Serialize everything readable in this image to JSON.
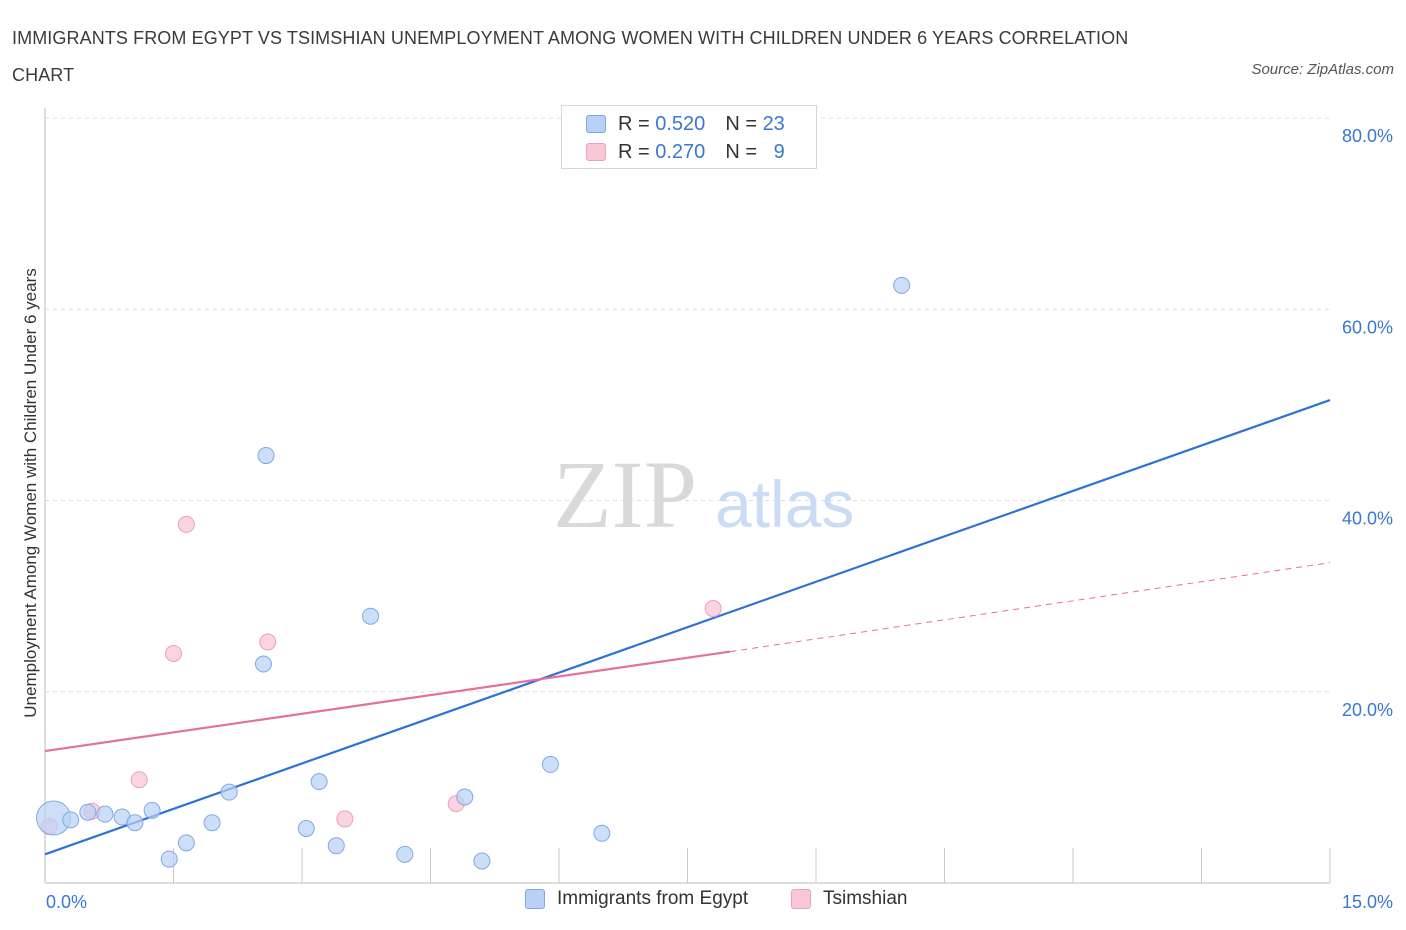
{
  "title": "IMMIGRANTS FROM EGYPT VS TSIMSHIAN UNEMPLOYMENT AMONG WOMEN WITH CHILDREN UNDER 6 YEARS CORRELATION CHART",
  "source": "Source: ZipAtlas.com",
  "watermark": {
    "zip": "ZIP",
    "atlas": "atlas"
  },
  "stats": [
    {
      "r_label": "R =",
      "r": "0.520",
      "n_label": "N =",
      "n": "23"
    },
    {
      "r_label": "R =",
      "r": "0.270",
      "n_label": "N =",
      "n": "9"
    }
  ],
  "colors": {
    "egypt_fill": "#b8d1f5",
    "egypt_stroke": "#7fa9e3",
    "egypt_line": "#2f72d6",
    "tsim_fill": "#f8c6d5",
    "tsim_stroke": "#eea0b8",
    "tsim_line": "#e5709a",
    "grid": "#dcdcdc",
    "axis_text": "#3a78d0"
  },
  "chart_data": {
    "type": "scatter",
    "title": "IMMIGRANTS FROM EGYPT VS TSIMSHIAN UNEMPLOYMENT AMONG WOMEN WITH CHILDREN UNDER 6 YEARS CORRELATION CHART",
    "xlabel": "",
    "ylabel": "Unemployment Among Women with Children Under 6 years",
    "xlim": [
      0,
      15
    ],
    "ylim": [
      0,
      80
    ],
    "x_tick_labels": [
      {
        "value": 0,
        "label": "0.0%"
      },
      {
        "value": 15,
        "label": "15.0%"
      }
    ],
    "y_tick_labels": [
      {
        "value": 20,
        "label": "20.0%"
      },
      {
        "value": 40,
        "label": "40.0%"
      },
      {
        "value": 60,
        "label": "60.0%"
      },
      {
        "value": 80,
        "label": "80.0%"
      }
    ],
    "grid": true,
    "legend_position": "top-center",
    "series": [
      {
        "name": "Immigrants from Egypt",
        "points": [
          {
            "x": 0.1,
            "y": 6.8,
            "big": true
          },
          {
            "x": 0.3,
            "y": 6.6
          },
          {
            "x": 0.5,
            "y": 7.4
          },
          {
            "x": 0.7,
            "y": 7.2
          },
          {
            "x": 0.9,
            "y": 6.9
          },
          {
            "x": 1.05,
            "y": 6.3
          },
          {
            "x": 1.25,
            "y": 7.6
          },
          {
            "x": 1.45,
            "y": 2.5
          },
          {
            "x": 1.65,
            "y": 4.2
          },
          {
            "x": 1.95,
            "y": 6.3
          },
          {
            "x": 2.15,
            "y": 9.5
          },
          {
            "x": 2.55,
            "y": 22.9
          },
          {
            "x": 2.58,
            "y": 44.7
          },
          {
            "x": 3.05,
            "y": 5.7
          },
          {
            "x": 3.2,
            "y": 10.6
          },
          {
            "x": 3.4,
            "y": 3.9
          },
          {
            "x": 3.8,
            "y": 27.9
          },
          {
            "x": 4.2,
            "y": 3.0
          },
          {
            "x": 4.9,
            "y": 9.0
          },
          {
            "x": 5.1,
            "y": 2.3
          },
          {
            "x": 5.9,
            "y": 12.4
          },
          {
            "x": 6.5,
            "y": 5.2
          },
          {
            "x": 10.0,
            "y": 62.5
          }
        ],
        "trend": {
          "x1": 0,
          "y1": 3.0,
          "x2": 15,
          "y2": 50.5
        }
      },
      {
        "name": "Tsimshian",
        "points": [
          {
            "x": 0.05,
            "y": 5.9
          },
          {
            "x": 0.55,
            "y": 7.5
          },
          {
            "x": 1.1,
            "y": 10.8
          },
          {
            "x": 1.5,
            "y": 24.0
          },
          {
            "x": 1.65,
            "y": 37.5
          },
          {
            "x": 2.6,
            "y": 25.2
          },
          {
            "x": 3.5,
            "y": 6.7
          },
          {
            "x": 4.8,
            "y": 8.3
          },
          {
            "x": 7.8,
            "y": 28.7
          }
        ],
        "trend": {
          "x1": 0,
          "y1": 13.8,
          "x2": 8.0,
          "y2": 24.2,
          "x_dash_end": 15,
          "y_dash_end": 33.5
        }
      }
    ]
  }
}
